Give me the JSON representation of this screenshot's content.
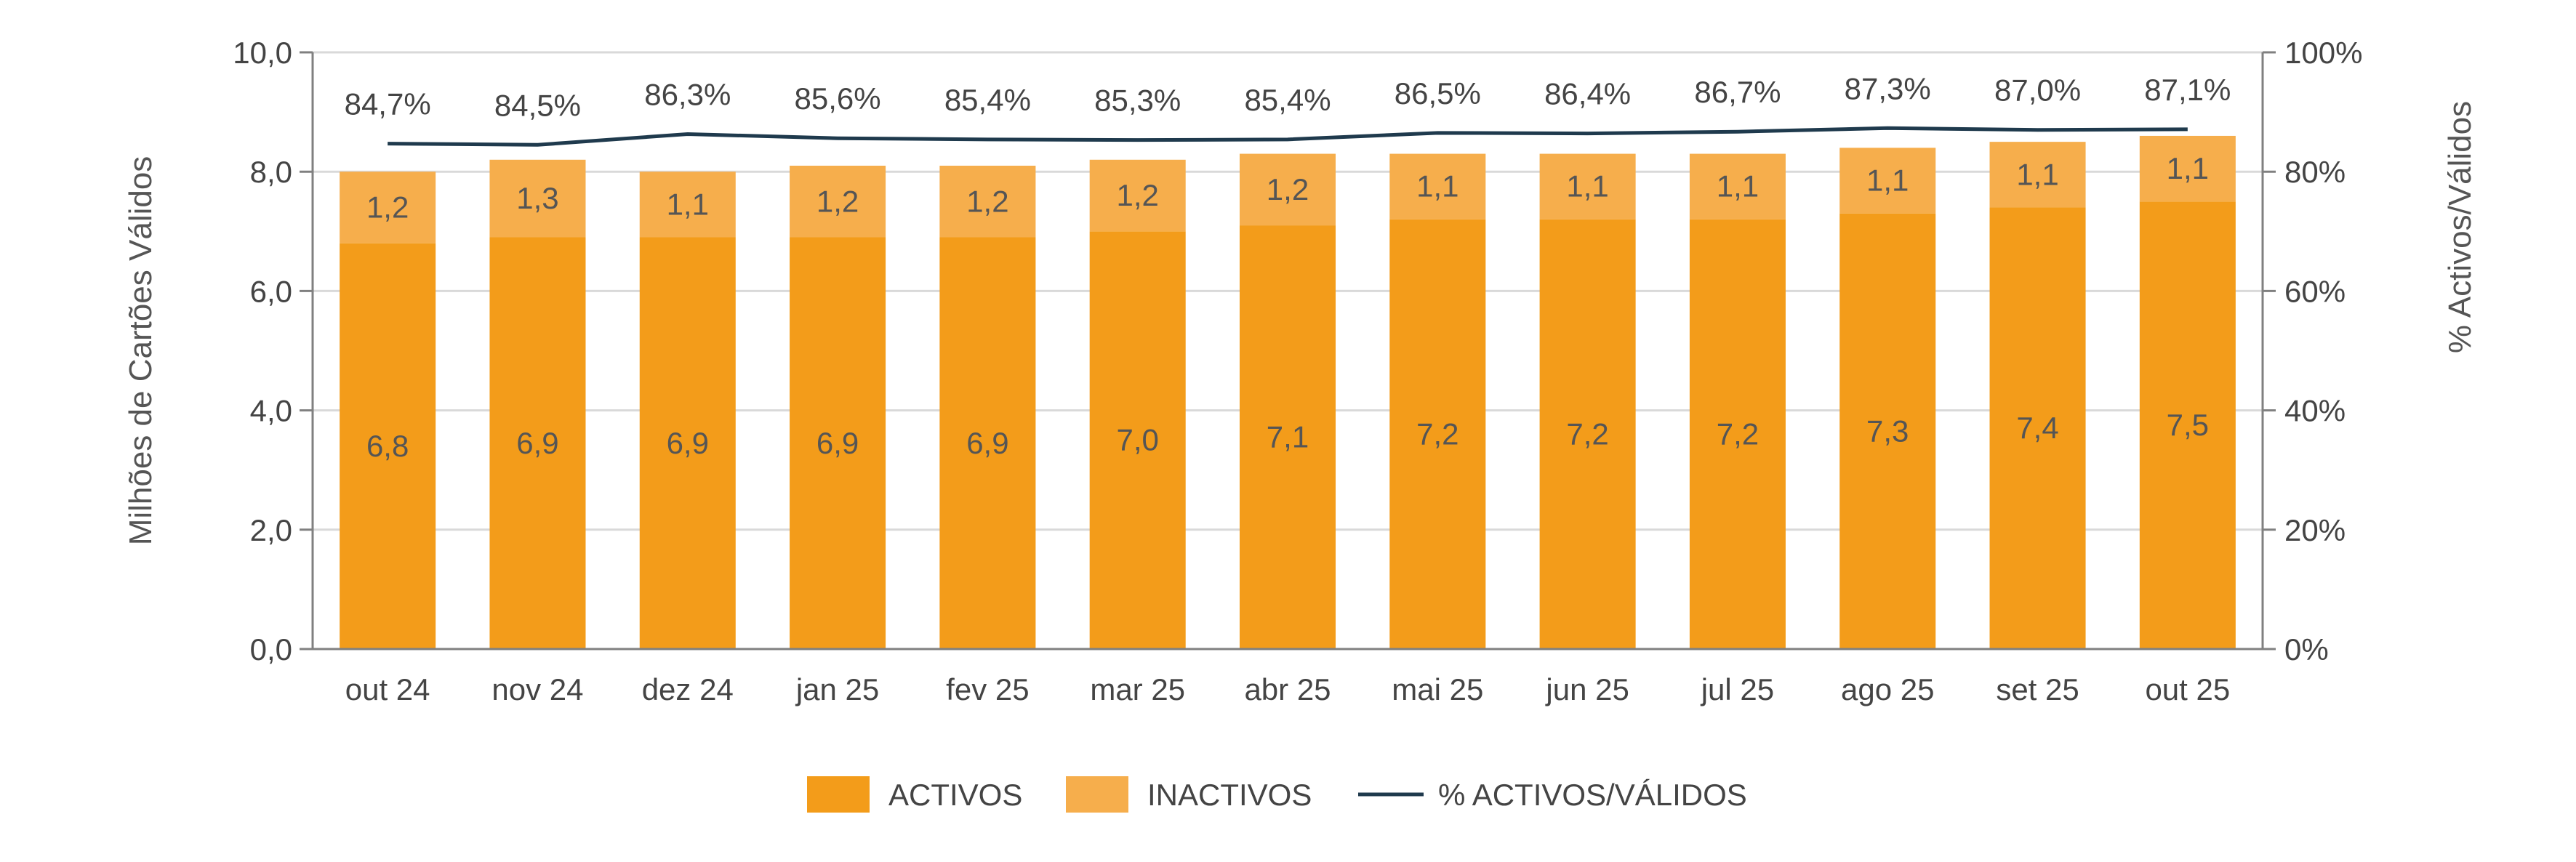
{
  "chart_data": {
    "type": "bar",
    "stacked": true,
    "categories": [
      "out 24",
      "nov 24",
      "dez 24",
      "jan 25",
      "fev 25",
      "mar 25",
      "abr 25",
      "mai 25",
      "jun 25",
      "jul 25",
      "ago 25",
      "set 25",
      "out 25"
    ],
    "series": [
      {
        "name": "ACTIVOS",
        "kind": "bar",
        "axis": "left",
        "color": "#F39C1A",
        "values": [
          6.8,
          6.9,
          6.9,
          6.9,
          6.9,
          7.0,
          7.1,
          7.2,
          7.2,
          7.2,
          7.3,
          7.4,
          7.5
        ],
        "labels": [
          "6,8",
          "6,9",
          "6,9",
          "6,9",
          "6,9",
          "7,0",
          "7,1",
          "7,2",
          "7,2",
          "7,2",
          "7,3",
          "7,4",
          "7,5"
        ]
      },
      {
        "name": "INACTIVOS",
        "kind": "bar",
        "axis": "left",
        "color": "#F6AE4C",
        "values": [
          1.2,
          1.3,
          1.1,
          1.2,
          1.2,
          1.2,
          1.2,
          1.1,
          1.1,
          1.1,
          1.1,
          1.1,
          1.1
        ],
        "labels": [
          "1,2",
          "1,3",
          "1,1",
          "1,2",
          "1,2",
          "1,2",
          "1,2",
          "1,1",
          "1,1",
          "1,1",
          "1,1",
          "1,1",
          "1,1"
        ]
      },
      {
        "name": "% ACTIVOS/VÁLIDOS",
        "kind": "line",
        "axis": "right",
        "color": "#1F3A4D",
        "values": [
          84.7,
          84.5,
          86.3,
          85.6,
          85.4,
          85.3,
          85.4,
          86.5,
          86.4,
          86.7,
          87.3,
          87.0,
          87.1
        ],
        "labels": [
          "84,7%",
          "84,5%",
          "86,3%",
          "85,6%",
          "85,4%",
          "85,3%",
          "85,4%",
          "86,5%",
          "86,4%",
          "86,7%",
          "87,3%",
          "87,0%",
          "87,1%"
        ]
      }
    ],
    "ylabel": "Milhões de Cartões Válidos",
    "ylim": [
      0,
      10
    ],
    "yticks": [
      "0,0",
      "2,0",
      "4,0",
      "6,0",
      "8,0",
      "10,0"
    ],
    "y2label": "% Activos/Válidos",
    "y2lim": [
      0,
      100
    ],
    "y2ticks": [
      "0%",
      "20%",
      "40%",
      "60%",
      "80%",
      "100%"
    ],
    "grid": true,
    "legend_position": "bottom-center"
  }
}
